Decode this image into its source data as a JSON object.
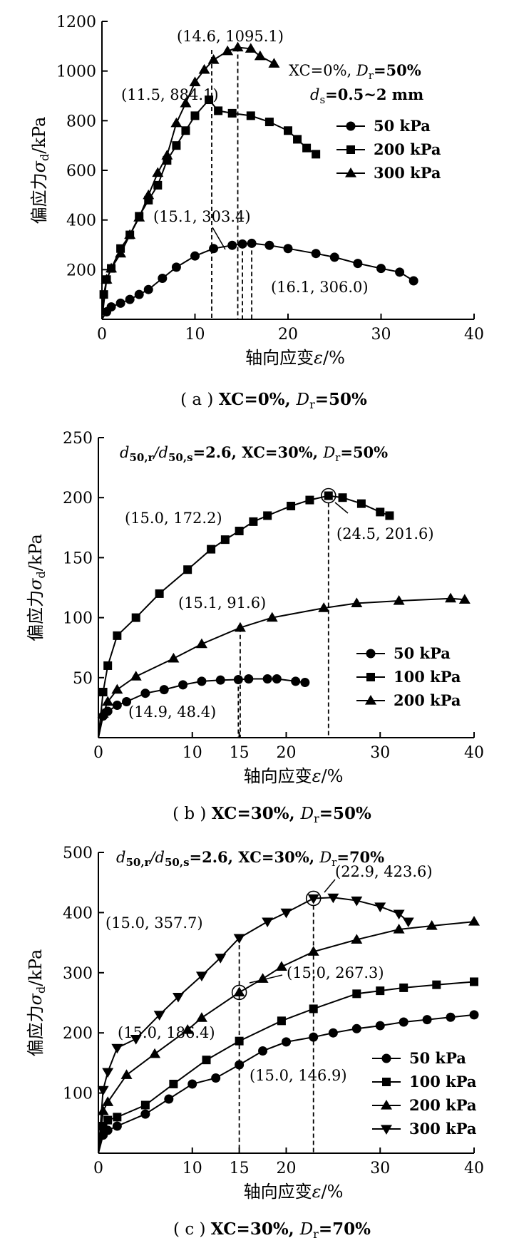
{
  "chart_data": [
    {
      "type": "line",
      "panel": "a",
      "ylabel_prefix": "偏应力",
      "ylabel_unit": "/kPa",
      "xlabel_prefix": "轴向应变",
      "xlabel_unit": "/%",
      "xlim": [
        0,
        40
      ],
      "ylim": [
        0,
        1200
      ],
      "xticks": [
        0,
        10,
        20,
        30,
        40
      ],
      "yticks": [
        200,
        400,
        600,
        800,
        1000,
        1200
      ],
      "info1": {
        "a": "XC=0%, ",
        "b": "D",
        "sub": "r",
        "c": "=50%"
      },
      "info2": {
        "a": "d",
        "sub": "s",
        "b": "=0.5~2 mm"
      },
      "caption": {
        "pre": "( a ) ",
        "a": "XC=0%, ",
        "b": "D",
        "sub": "r",
        "c": "=50%"
      },
      "series": [
        {
          "name": "50 kPa",
          "marker": "circle",
          "x": [
            0,
            0.5,
            1,
            2,
            3,
            4,
            5,
            6.5,
            8,
            10,
            12,
            14,
            15.1,
            16.1,
            18,
            20,
            23,
            25,
            27.5,
            30,
            32,
            33.5
          ],
          "y": [
            0,
            30,
            50,
            65,
            80,
            100,
            120,
            165,
            210,
            255,
            285,
            298,
            303.4,
            306.0,
            298,
            285,
            265,
            250,
            225,
            205,
            190,
            155
          ]
        },
        {
          "name": "200 kPa",
          "marker": "square",
          "x": [
            0,
            0.2,
            0.5,
            1,
            2,
            3,
            4,
            5,
            6,
            7,
            8,
            9,
            10,
            11.5,
            12.5,
            14,
            16,
            18,
            20,
            21,
            22,
            23
          ],
          "y": [
            0,
            100,
            160,
            205,
            285,
            340,
            415,
            480,
            540,
            640,
            700,
            760,
            820,
            884.1,
            840,
            830,
            820,
            795,
            760,
            725,
            690,
            665
          ]
        },
        {
          "name": "300 kPa",
          "marker": "triangle",
          "x": [
            0,
            0.5,
            1,
            2,
            3,
            4,
            5,
            6,
            7,
            8,
            9,
            10,
            11,
            12,
            13.5,
            14.6,
            16,
            17,
            18.5
          ],
          "y": [
            0,
            160,
            205,
            265,
            340,
            410,
            500,
            590,
            660,
            790,
            870,
            955,
            1005,
            1045,
            1080,
            1095.1,
            1090,
            1060,
            1030
          ]
        }
      ],
      "annotations": [
        {
          "text": "(14.6, 1095.1)",
          "x": 14.6,
          "y": 1095.1
        },
        {
          "text": "(11.5, 884.1)",
          "x": 11.5,
          "y": 884.1
        },
        {
          "text": "(15.1, 303.4)",
          "x": 15.1,
          "y": 303.4
        },
        {
          "text": "(16.1, 306.0)",
          "x": 16.1,
          "y": 306.0
        }
      ],
      "vlines": [
        11.8,
        14.6,
        15.1,
        16.1
      ],
      "legend_position": "right"
    },
    {
      "type": "line",
      "panel": "b",
      "ylabel_prefix": "偏应力",
      "ylabel_unit": "/kPa",
      "xlabel_prefix": "轴向应变",
      "xlabel_unit": "/%",
      "xlim": [
        0,
        40
      ],
      "ylim": [
        0,
        250
      ],
      "xticks": [
        0,
        10,
        15,
        20,
        30,
        40
      ],
      "yticks": [
        50,
        100,
        150,
        200,
        250
      ],
      "info1": {
        "a": "d",
        "sub1": "50,r",
        "b": "/d",
        "sub2": "50,s",
        "c": "=2.6, XC=30%, ",
        "d": "D",
        "sub3": "r",
        "e": "=50%"
      },
      "caption": {
        "pre": "( b ) ",
        "a": "XC=30%, ",
        "b": "D",
        "sub": "r",
        "c": "=50%"
      },
      "series": [
        {
          "name": "50 kPa",
          "marker": "circle",
          "x": [
            0,
            0.5,
            1,
            2,
            3,
            5,
            7,
            9,
            11,
            13,
            14.9,
            16,
            18,
            19,
            21,
            22
          ],
          "y": [
            0,
            18,
            22,
            27,
            30,
            37,
            40,
            44,
            47,
            48,
            48.4,
            49,
            49,
            49,
            47,
            46
          ]
        },
        {
          "name": "100 kPa",
          "marker": "square",
          "x": [
            0,
            0.5,
            1,
            2,
            4,
            6.5,
            9.5,
            12,
            13.5,
            15.0,
            16.5,
            18,
            20.5,
            22.5,
            24.5,
            26,
            28,
            30,
            31
          ],
          "y": [
            0,
            38,
            60,
            85,
            100,
            120,
            140,
            157,
            165,
            172.2,
            180,
            185,
            193,
            198,
            201.6,
            200,
            195,
            188,
            185
          ]
        },
        {
          "name": "200 kPa",
          "marker": "triangle",
          "x": [
            0,
            0.5,
            1,
            2,
            4,
            8,
            11,
            15.1,
            18.5,
            24,
            27.5,
            32,
            37.5,
            39
          ],
          "y": [
            0,
            20,
            30,
            40,
            51,
            66,
            78,
            91.6,
            100,
            108,
            112,
            114,
            116,
            115
          ]
        }
      ],
      "annotations": [
        {
          "text": "(15.0, 172.2)",
          "x": 15.0,
          "y": 172.2
        },
        {
          "text": "(24.5, 201.6)",
          "x": 24.5,
          "y": 201.6
        },
        {
          "text": "(15.1, 91.6)",
          "x": 15.1,
          "y": 91.6
        },
        {
          "text": "(14.9, 48.4)",
          "x": 14.9,
          "y": 48.4
        }
      ],
      "vlines": [
        14.9,
        15.1,
        24.5
      ],
      "legend_position": "bottom-right"
    },
    {
      "type": "line",
      "panel": "c",
      "ylabel_prefix": "偏应力",
      "ylabel_unit": "/kPa",
      "xlabel_prefix": "轴向应变",
      "xlabel_unit": "/%",
      "xlim": [
        0,
        40
      ],
      "ylim": [
        0,
        500
      ],
      "xticks": [
        0,
        10,
        15,
        20,
        30,
        40
      ],
      "yticks": [
        100,
        200,
        300,
        400,
        500
      ],
      "info1": {
        "a": "d",
        "sub1": "50,r",
        "b": "/d",
        "sub2": "50,s",
        "c": "=2.6, XC=30%, ",
        "d": "D",
        "sub3": "r",
        "e": "=70%"
      },
      "caption": {
        "pre": "( c ) ",
        "a": "XC=30%, ",
        "b": "D",
        "sub": "r",
        "c": "=70%"
      },
      "series": [
        {
          "name": "50 kPa",
          "marker": "circle",
          "x": [
            0,
            0.5,
            1,
            2,
            5,
            7.5,
            10,
            12.5,
            15.0,
            17.5,
            20,
            22.9,
            25,
            27.5,
            30,
            32.5,
            35,
            37.5,
            40
          ],
          "y": [
            0,
            30,
            38,
            45,
            65,
            90,
            115,
            125,
            146.9,
            170,
            185,
            193,
            200,
            207,
            212,
            218,
            222,
            226,
            230
          ]
        },
        {
          "name": "100 kPa",
          "marker": "square",
          "x": [
            0,
            0.5,
            1,
            2,
            5,
            8,
            11.5,
            15.0,
            19.5,
            22.9,
            27.5,
            30,
            32.5,
            36,
            40
          ],
          "y": [
            0,
            45,
            55,
            60,
            80,
            115,
            155,
            186.4,
            220,
            240,
            265,
            270,
            275,
            280,
            285
          ]
        },
        {
          "name": "200 kPa",
          "marker": "triangle",
          "x": [
            0,
            0.5,
            1,
            3,
            6,
            9.5,
            11,
            15.0,
            17.5,
            19.5,
            22.9,
            27.5,
            32,
            35.5,
            40
          ],
          "y": [
            0,
            70,
            85,
            130,
            165,
            205,
            225,
            267.3,
            290,
            310,
            335,
            355,
            372,
            378,
            385
          ]
        },
        {
          "name": "300 kPa",
          "marker": "triangle-down",
          "x": [
            0,
            0.5,
            1,
            2,
            4,
            6.5,
            8.5,
            11,
            13,
            15.0,
            18,
            20,
            22.9,
            25,
            27.5,
            30,
            32,
            33
          ],
          "y": [
            0,
            105,
            135,
            175,
            190,
            230,
            260,
            295,
            325,
            357.7,
            385,
            400,
            423.6,
            425,
            420,
            410,
            398,
            385
          ]
        }
      ],
      "annotations": [
        {
          "text": "(22.9, 423.6)",
          "x": 22.9,
          "y": 423.6
        },
        {
          "text": "(15.0, 357.7)",
          "x": 15.0,
          "y": 357.7
        },
        {
          "text": "(15.0, 267.3)",
          "x": 15.0,
          "y": 267.3
        },
        {
          "text": "(15.0, 186.4)",
          "x": 15.0,
          "y": 186.4
        },
        {
          "text": "(15.0, 146.9)",
          "x": 15.0,
          "y": 146.9
        }
      ],
      "vlines": [
        15.0,
        22.9
      ],
      "legend_position": "bottom-right"
    }
  ]
}
